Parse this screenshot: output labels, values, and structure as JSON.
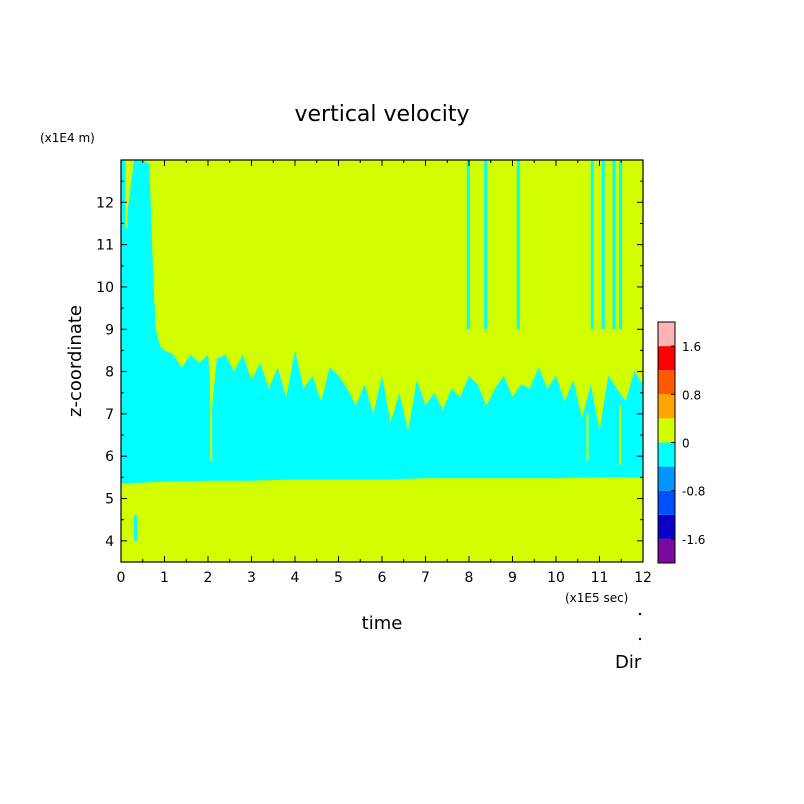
{
  "chart_data": {
    "type": "heatmap",
    "title": "vertical velocity",
    "xlabel": "time",
    "ylabel": "z-coordinate",
    "x_unit": "(x1E5 sec)",
    "y_unit": "(x1E4 m)",
    "xlim": [
      0,
      12
    ],
    "ylim": [
      3.5,
      13
    ],
    "x_ticks": [
      "0",
      "1",
      "2",
      "3",
      "4",
      "5",
      "6",
      "7",
      "8",
      "9",
      "10",
      "11",
      "12"
    ],
    "y_ticks": [
      "4",
      "5",
      "6",
      "7",
      "8",
      "9",
      "10",
      "11",
      "12"
    ],
    "colorbar": {
      "levels": [
        -2.0,
        -1.6,
        -1.2,
        -0.8,
        -0.4,
        0,
        0.4,
        0.8,
        1.2,
        1.6,
        2.0
      ],
      "colors": [
        "#7a0aa0",
        "#0a00c8",
        "#0050ff",
        "#0096ff",
        "#00ffff",
        "#d2ff00",
        "#ffa500",
        "#ff5a00",
        "#ff0000",
        "#ffb4b4"
      ],
      "labels": [
        "1.6",
        "0.8",
        "0",
        "-0.8",
        "-1.6"
      ]
    },
    "upper_layer_boundary": {
      "description": "lower edge of the upper positive (yellow-green) region",
      "x": [
        0.1,
        0.3,
        0.5,
        0.65,
        0.75,
        0.8,
        0.9,
        1.0,
        1.2,
        1.4,
        1.6,
        1.8,
        2.0,
        2.1,
        2.2,
        2.4,
        2.6,
        2.8,
        3.0,
        3.2,
        3.4,
        3.6,
        3.8,
        4.0,
        4.2,
        4.4,
        4.6,
        4.8,
        5.0,
        5.2,
        5.4,
        5.6,
        5.8,
        6.0,
        6.2,
        6.4,
        6.6,
        6.8,
        7.0,
        7.2,
        7.4,
        7.6,
        7.8,
        8.0,
        8.2,
        8.4,
        8.6,
        8.8,
        9.0,
        9.2,
        9.4,
        9.6,
        9.8,
        10.0,
        10.2,
        10.4,
        10.6,
        10.8,
        11.0,
        11.2,
        11.4,
        11.6,
        11.8,
        12.0
      ],
      "z": [
        11.4,
        13.0,
        13.0,
        12.9,
        10.0,
        9.0,
        8.6,
        8.5,
        8.4,
        8.1,
        8.4,
        8.2,
        8.4,
        7.2,
        8.3,
        8.4,
        8.0,
        8.4,
        7.8,
        8.2,
        7.6,
        8.1,
        7.4,
        8.5,
        7.6,
        7.9,
        7.3,
        8.1,
        7.9,
        7.6,
        7.2,
        7.7,
        7.0,
        7.9,
        6.8,
        7.5,
        6.6,
        7.8,
        7.2,
        7.5,
        7.1,
        7.6,
        7.4,
        7.9,
        7.7,
        7.2,
        7.6,
        7.9,
        7.4,
        7.7,
        7.6,
        8.1,
        7.6,
        7.9,
        7.3,
        7.8,
        6.9,
        7.7,
        6.6,
        7.9,
        7.6,
        7.3,
        8.0,
        7.7
      ]
    },
    "lower_layer_boundary": {
      "description": "top edge of the lower positive (yellow-green) region",
      "x": [
        0,
        1,
        2,
        3,
        4,
        5,
        6,
        7,
        8,
        9,
        10,
        11,
        12
      ],
      "z": [
        5.35,
        5.4,
        5.42,
        5.42,
        5.45,
        5.45,
        5.45,
        5.48,
        5.48,
        5.48,
        5.48,
        5.5,
        5.5
      ]
    },
    "annotation": "Dir"
  }
}
